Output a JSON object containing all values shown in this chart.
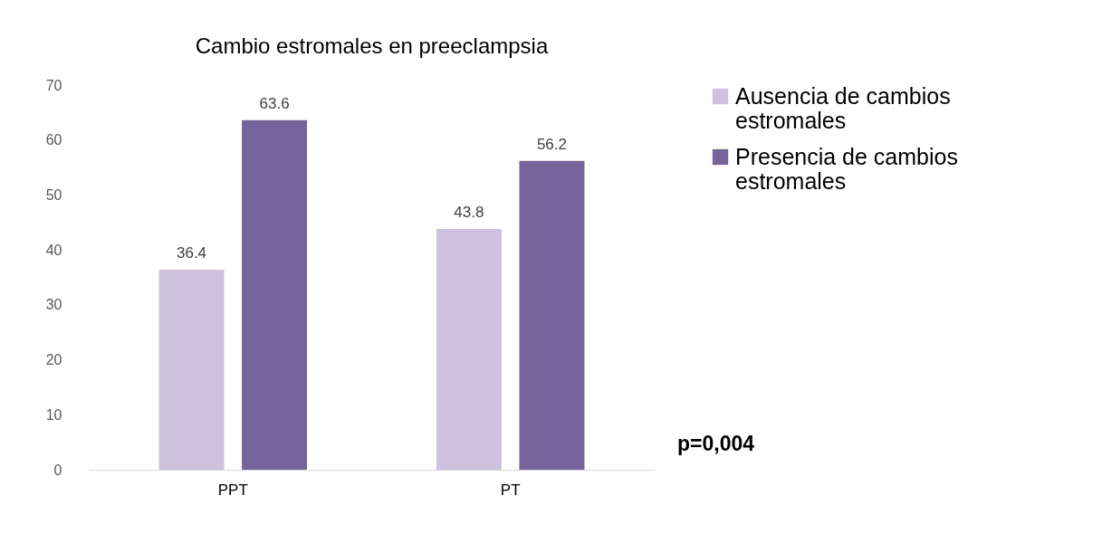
{
  "chart_data": {
    "type": "bar",
    "title": "Cambio estromales en preeclampsia",
    "categories": [
      "PPT",
      "PT"
    ],
    "series": [
      {
        "name": "Ausencia de cambios estromales",
        "color": "#ccc1de",
        "values": [
          36.4,
          43.8
        ]
      },
      {
        "name": "Presencia de cambios estromales",
        "color": "#74649a",
        "values": [
          63.6,
          56.2
        ]
      }
    ],
    "ylim": [
      0,
      70
    ],
    "yticks": [
      0,
      10,
      20,
      30,
      40,
      50,
      60,
      70
    ],
    "grid": false,
    "legend": "right",
    "data_labels": true,
    "annotations": [
      "p=0,004"
    ]
  }
}
